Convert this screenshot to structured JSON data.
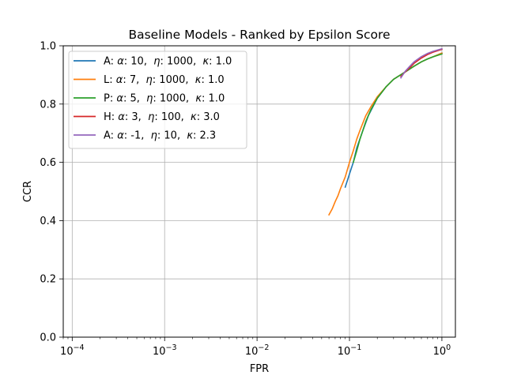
{
  "chart_data": {
    "type": "line",
    "title": "Baseline Models - Ranked by Epsilon Score",
    "xlabel": "FPR",
    "ylabel": "CCR",
    "xscale": "log",
    "xlim": [
      8e-05,
      1.4
    ],
    "ylim": [
      0.0,
      1.0
    ],
    "xticks": [
      0.0001,
      0.001,
      0.01,
      0.1,
      1
    ],
    "xtick_labels": [
      {
        "base": "10",
        "exp": "−4"
      },
      {
        "base": "10",
        "exp": "−3"
      },
      {
        "base": "10",
        "exp": "−2"
      },
      {
        "base": "10",
        "exp": "−1"
      },
      {
        "base": "10",
        "exp": "0"
      }
    ],
    "yticks": [
      0.0,
      0.2,
      0.4,
      0.6,
      0.8,
      1.0
    ],
    "ytick_labels": [
      "0.0",
      "0.2",
      "0.4",
      "0.6",
      "0.8",
      "1.0"
    ],
    "grid": true,
    "legend_position": "top-left",
    "series": [
      {
        "name": {
          "prefix": "A: ",
          "a": "10",
          "e": "1000",
          "k": "1.0"
        },
        "color": "#1f77b4",
        "x": [
          0.09,
          0.1,
          0.11,
          0.12,
          0.14,
          0.16,
          0.2,
          0.25,
          0.3,
          0.4,
          0.5,
          0.6,
          0.7,
          0.8,
          1.0
        ],
        "y": [
          0.515,
          0.56,
          0.6,
          0.65,
          0.71,
          0.76,
          0.82,
          0.86,
          0.885,
          0.91,
          0.93,
          0.945,
          0.955,
          0.962,
          0.975
        ]
      },
      {
        "name": {
          "prefix": "L: ",
          "a": "7",
          "e": "1000",
          "k": "1.0"
        },
        "color": "#ff7f0e",
        "x": [
          0.06,
          0.065,
          0.07,
          0.075,
          0.08,
          0.09,
          0.1,
          0.11,
          0.12,
          0.13,
          0.15,
          0.17,
          0.2,
          0.25,
          0.3,
          0.4,
          0.5,
          0.6,
          0.7,
          0.8,
          1.0
        ],
        "y": [
          0.42,
          0.44,
          0.465,
          0.485,
          0.51,
          0.55,
          0.6,
          0.64,
          0.68,
          0.71,
          0.76,
          0.79,
          0.825,
          0.86,
          0.885,
          0.91,
          0.93,
          0.945,
          0.955,
          0.962,
          0.975
        ]
      },
      {
        "name": {
          "prefix": "P: ",
          "a": "5",
          "e": "1000",
          "k": "1.0"
        },
        "color": "#2ca02c",
        "x": [
          0.11,
          0.12,
          0.13,
          0.15,
          0.17,
          0.2,
          0.25,
          0.3,
          0.4,
          0.5,
          0.6,
          0.7,
          0.8,
          1.0
        ],
        "y": [
          0.6,
          0.64,
          0.68,
          0.74,
          0.78,
          0.82,
          0.86,
          0.885,
          0.91,
          0.93,
          0.945,
          0.955,
          0.962,
          0.972
        ]
      },
      {
        "name": {
          "prefix": "H: ",
          "a": "3",
          "e": "100",
          "k": "3.0"
        },
        "color": "#d62728",
        "x": [
          0.36,
          0.4,
          0.45,
          0.5,
          0.6,
          0.7,
          0.8,
          1.0
        ],
        "y": [
          0.895,
          0.91,
          0.925,
          0.94,
          0.958,
          0.97,
          0.978,
          0.988
        ]
      },
      {
        "name": {
          "prefix": "A: ",
          "a": "-1",
          "e": "10",
          "k": "2.3"
        },
        "color": "#9467bd",
        "x": [
          0.36,
          0.4,
          0.45,
          0.5,
          0.6,
          0.7,
          0.8,
          1.0
        ],
        "y": [
          0.89,
          0.912,
          0.93,
          0.945,
          0.963,
          0.974,
          0.981,
          0.99
        ]
      }
    ]
  }
}
